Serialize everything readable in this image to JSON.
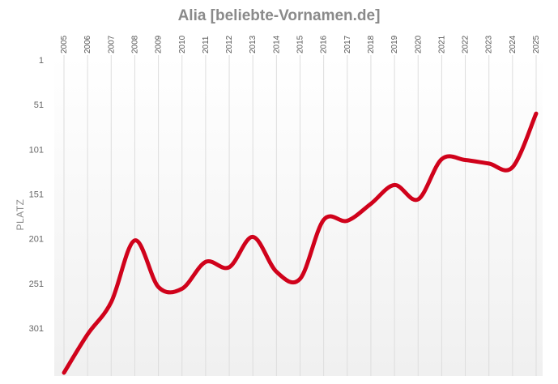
{
  "chart_data": {
    "type": "line",
    "title": "Alia [beliebte-Vornamen.de]",
    "xlabel": "",
    "ylabel": "PLATZ",
    "y_axis_inverted": true,
    "ylim": [
      1,
      351
    ],
    "y_ticks": [
      "1",
      "51",
      "101",
      "151",
      "201",
      "251",
      "301"
    ],
    "x": [
      "2005",
      "2006",
      "2007",
      "2008",
      "2009",
      "2010",
      "2011",
      "2012",
      "2013",
      "2014",
      "2015",
      "2016",
      "2017",
      "2018",
      "2019",
      "2020",
      "2021",
      "2022",
      "2023",
      "2024",
      "2025"
    ],
    "series": [
      {
        "values": [
          351,
          308,
          272,
          203,
          255,
          257,
          227,
          233,
          199,
          238,
          246,
          180,
          181,
          162,
          141,
          157,
          112,
          113,
          117,
          121,
          61
        ],
        "color": "#d0021b"
      }
    ],
    "grid": "vertical",
    "legend": "none"
  },
  "colors": {
    "line": "#d0021b",
    "grid": "#dddddd",
    "title": "#8a8a8a",
    "background_gradient_end": "#f0f0f0"
  }
}
